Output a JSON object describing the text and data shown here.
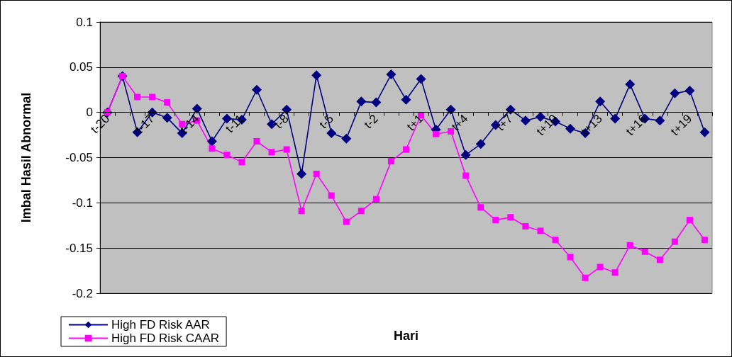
{
  "chart_data": {
    "type": "line",
    "xlabel": "Hari",
    "ylabel": "Imbal Hasil Abnormal",
    "categories": [
      "t-20",
      null,
      null,
      "t-17",
      null,
      null,
      "t-14",
      null,
      null,
      "t-11",
      null,
      null,
      "t-8",
      null,
      null,
      "t-5",
      null,
      null,
      "t-2",
      null,
      null,
      "t+1",
      null,
      null,
      "t+4",
      null,
      null,
      "t+7",
      null,
      null,
      "t+10",
      null,
      null,
      "t+13",
      null,
      null,
      "t+16",
      null,
      null,
      "t+19",
      null
    ],
    "series": [
      {
        "name": "High FD Risk AAR",
        "color": "#000080",
        "marker": "diamond",
        "values": [
          0,
          0.04,
          -0.022,
          0.0,
          -0.006,
          -0.023,
          0.004,
          -0.032,
          -0.007,
          -0.008,
          0.025,
          -0.013,
          0.003,
          -0.068,
          0.041,
          -0.023,
          -0.029,
          0.012,
          0.011,
          0.042,
          0.014,
          0.037,
          -0.019,
          0.003,
          -0.047,
          -0.035,
          -0.014,
          0.003,
          -0.009,
          -0.005,
          -0.01,
          -0.018,
          -0.023,
          0.012,
          -0.007,
          0.031,
          -0.007,
          -0.009,
          0.021,
          0.024,
          -0.022
        ]
      },
      {
        "name": "High FD Risk CAAR",
        "color": "#ff00ff",
        "marker": "square",
        "values": [
          0,
          0.04,
          0.017,
          0.017,
          0.011,
          -0.013,
          -0.009,
          -0.04,
          -0.047,
          -0.055,
          -0.032,
          -0.044,
          -0.041,
          -0.109,
          -0.068,
          -0.092,
          -0.121,
          -0.109,
          -0.096,
          -0.054,
          -0.041,
          -0.003,
          -0.024,
          -0.021,
          -0.07,
          -0.105,
          -0.119,
          -0.116,
          -0.126,
          -0.131,
          -0.141,
          -0.16,
          -0.183,
          -0.171,
          -0.177,
          -0.147,
          -0.154,
          -0.163,
          -0.143,
          -0.119,
          -0.141
        ]
      }
    ],
    "ylim": [
      -0.2,
      0.1
    ],
    "yticks": [
      -0.2,
      -0.15,
      -0.1,
      -0.05,
      0,
      0.05,
      0.1
    ],
    "grid": "y",
    "legend": "bottom left",
    "line_style": "solid"
  }
}
